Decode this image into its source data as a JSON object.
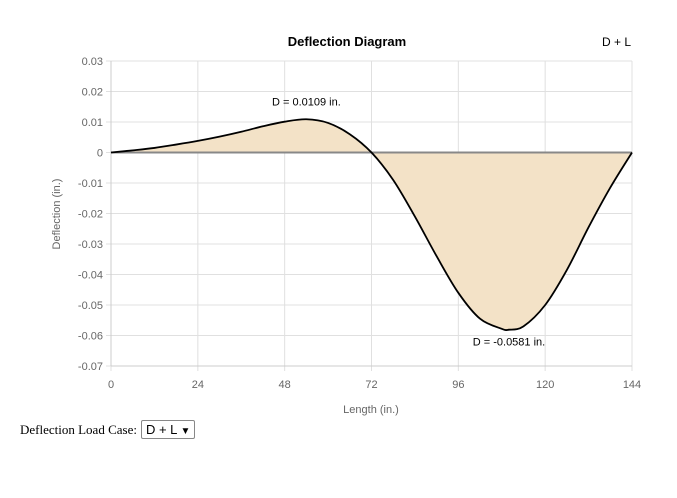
{
  "chart_data": {
    "type": "area",
    "title": "Deflection Diagram",
    "case_label": "D + L",
    "xlabel": "Length (in.)",
    "ylabel": "Deflection (in.)",
    "xlim": [
      0,
      144
    ],
    "ylim": [
      -0.07,
      0.03
    ],
    "xticks": [
      0,
      24,
      48,
      72,
      96,
      120,
      144
    ],
    "yticks": [
      0.03,
      0.02,
      0.01,
      0,
      -0.01,
      -0.02,
      -0.03,
      -0.04,
      -0.05,
      -0.06,
      -0.07
    ],
    "ytick_labels": [
      "0.03",
      "0.02",
      "0.01",
      "0",
      "-0.01",
      "-0.02",
      "-0.03",
      "-0.04",
      "-0.05",
      "-0.06",
      "-0.07"
    ],
    "grid": true,
    "x": [
      0,
      6,
      12,
      18,
      24,
      30,
      36,
      42,
      48,
      54,
      60,
      66,
      72,
      78,
      84,
      90,
      96,
      102,
      108,
      110,
      114,
      120,
      126,
      132,
      138,
      144
    ],
    "y": [
      0,
      0.0007,
      0.0015,
      0.0026,
      0.0038,
      0.0052,
      0.0068,
      0.0086,
      0.0101,
      0.0109,
      0.0097,
      0.006,
      0.0,
      -0.009,
      -0.021,
      -0.034,
      -0.046,
      -0.0545,
      -0.0578,
      -0.0581,
      -0.057,
      -0.05,
      -0.0385,
      -0.0245,
      -0.0115,
      0
    ],
    "fill_color": "#f3e2c7",
    "line_color": "#000000",
    "annotations": [
      {
        "text": "D = 0.0109 in.",
        "x": 54,
        "y": 0.0109,
        "position": "above"
      },
      {
        "text": "D = -0.0581 in.",
        "x": 110,
        "y": -0.0581,
        "position": "below"
      }
    ]
  },
  "control": {
    "label": "Deflection Load Case:",
    "selected": "D + L",
    "arrow": "▼"
  }
}
